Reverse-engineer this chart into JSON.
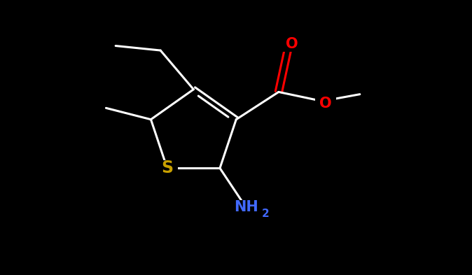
{
  "background_color": "#000000",
  "bond_color": "#ffffff",
  "bond_width": 2.2,
  "atom_colors": {
    "O": "#ff0000",
    "S": "#c8a000",
    "N": "#4169ff",
    "C": "#ffffff"
  },
  "font_size_atoms": 15,
  "font_size_subscript": 11,
  "figsize": [
    6.74,
    3.93
  ],
  "dpi": 100,
  "xlim": [
    0,
    10
  ],
  "ylim": [
    0,
    6
  ]
}
